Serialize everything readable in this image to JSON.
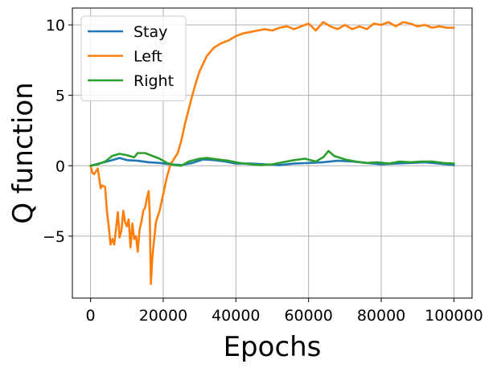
{
  "chart_data": {
    "type": "line",
    "title": "",
    "xlabel": "Epochs",
    "ylabel": "Q function",
    "xlim": [
      -5000,
      105000
    ],
    "ylim": [
      -9.4,
      11.2
    ],
    "xticks": [
      0,
      20000,
      40000,
      60000,
      80000,
      100000
    ],
    "xtick_labels": [
      "0",
      "20000",
      "40000",
      "60000",
      "80000",
      "100000"
    ],
    "yticks": [
      -5,
      0,
      5,
      10
    ],
    "ytick_labels": [
      "−5",
      "0",
      "5",
      "10"
    ],
    "grid": true,
    "legend_position": "upper-left",
    "series": [
      {
        "name": "Stay",
        "color": "#1f77b4",
        "x": [
          0,
          3000,
          6000,
          8000,
          10000,
          13000,
          16000,
          19000,
          22000,
          25000,
          28000,
          31000,
          34000,
          37000,
          40000,
          44000,
          48000,
          52000,
          56000,
          60000,
          64000,
          68000,
          72000,
          76000,
          80000,
          84000,
          88000,
          92000,
          96000,
          100000
        ],
        "y": [
          0.0,
          0.2,
          0.4,
          0.55,
          0.4,
          0.35,
          0.25,
          0.2,
          0.1,
          0.05,
          0.2,
          0.45,
          0.4,
          0.3,
          0.15,
          0.15,
          0.1,
          0.05,
          0.15,
          0.2,
          0.25,
          0.35,
          0.3,
          0.2,
          0.1,
          0.15,
          0.2,
          0.25,
          0.15,
          0.05
        ]
      },
      {
        "name": "Left",
        "color": "#ff7f0e",
        "x": [
          0,
          500,
          1000,
          2000,
          2800,
          3200,
          4000,
          4500,
          5000,
          5500,
          6000,
          6500,
          7000,
          7500,
          8000,
          8500,
          9000,
          9500,
          10000,
          10500,
          11000,
          11500,
          12000,
          12500,
          13000,
          13500,
          14000,
          14500,
          15000,
          15500,
          16000,
          16300,
          16600,
          17000,
          18000,
          19000,
          20000,
          21000,
          22000,
          23000,
          24000,
          25000,
          26000,
          27000,
          28000,
          29000,
          30000,
          32000,
          34000,
          36000,
          38000,
          40000,
          42000,
          44000,
          46000,
          48000,
          50000,
          52000,
          54000,
          56000,
          58000,
          60000,
          62000,
          64000,
          66000,
          68000,
          70000,
          72000,
          74000,
          76000,
          78000,
          80000,
          82000,
          84000,
          86000,
          88000,
          90000,
          92000,
          94000,
          96000,
          98000,
          100000
        ],
        "y": [
          0.0,
          -0.5,
          -0.6,
          -0.2,
          -1.6,
          -1.4,
          -1.5,
          -3.2,
          -4.3,
          -5.6,
          -5.2,
          -5.6,
          -4.5,
          -3.3,
          -5.1,
          -4.6,
          -3.2,
          -4.0,
          -4.3,
          -3.8,
          -5.8,
          -4.1,
          -5.2,
          -5.0,
          -6.1,
          -4.5,
          -4.0,
          -3.2,
          -3.0,
          -2.3,
          -1.8,
          -3.5,
          -8.4,
          -6.5,
          -4.0,
          -3.2,
          -2.0,
          -0.8,
          0.1,
          0.5,
          0.9,
          1.8,
          3.0,
          4.0,
          5.0,
          5.9,
          6.7,
          7.8,
          8.4,
          8.7,
          8.9,
          9.2,
          9.4,
          9.5,
          9.6,
          9.7,
          9.6,
          9.8,
          9.9,
          9.7,
          9.9,
          10.1,
          9.6,
          10.2,
          9.9,
          9.7,
          10.0,
          9.7,
          9.9,
          9.7,
          10.1,
          10.0,
          10.2,
          9.9,
          10.2,
          10.1,
          9.9,
          10.0,
          9.8,
          9.9,
          9.8,
          9.8
        ]
      },
      {
        "name": "Right",
        "color": "#2ca02c",
        "x": [
          0,
          2000,
          4000,
          6000,
          8000,
          10000,
          12000,
          13000,
          15000,
          17000,
          19000,
          21000,
          23000,
          25000,
          27000,
          30000,
          32000,
          35000,
          38000,
          41000,
          44000,
          47000,
          50000,
          53000,
          56000,
          59000,
          62000,
          64000,
          65500,
          67000,
          70000,
          73000,
          76000,
          79000,
          82000,
          85000,
          88000,
          91000,
          94000,
          97000,
          100000
        ],
        "y": [
          0.0,
          0.1,
          0.3,
          0.7,
          0.85,
          0.75,
          0.6,
          0.9,
          0.9,
          0.7,
          0.5,
          0.2,
          0.05,
          0.0,
          0.3,
          0.5,
          0.55,
          0.45,
          0.35,
          0.2,
          0.1,
          0.05,
          0.1,
          0.25,
          0.4,
          0.5,
          0.3,
          0.6,
          1.05,
          0.7,
          0.45,
          0.3,
          0.2,
          0.25,
          0.15,
          0.3,
          0.25,
          0.3,
          0.3,
          0.2,
          0.15
        ]
      }
    ]
  }
}
